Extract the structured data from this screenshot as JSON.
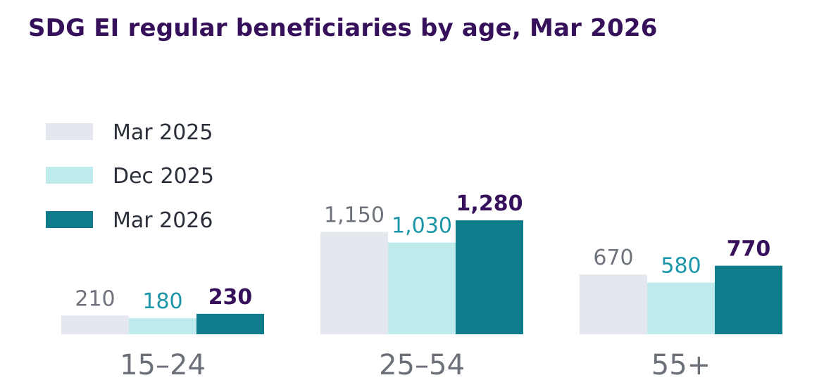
{
  "chart_data": {
    "type": "bar",
    "title": "SDG EI regular beneficiaries by age, Mar 2026",
    "categories": [
      "15–24",
      "25–54",
      "55+"
    ],
    "series": [
      {
        "name": "Mar 2025",
        "values": [
          210,
          1150,
          670
        ],
        "labels": [
          "210",
          "1,150",
          "670"
        ],
        "color": "#e4e7ee",
        "label_color": "#6e737b",
        "bold": false
      },
      {
        "name": "Dec 2025",
        "values": [
          180,
          1030,
          580
        ],
        "labels": [
          "180",
          "1,030",
          "580"
        ],
        "color": "#bfeaec",
        "label_color": "#1a96a8",
        "bold": false
      },
      {
        "name": "Mar 2026",
        "values": [
          230,
          1280,
          770
        ],
        "labels": [
          "230",
          "1,280",
          "770"
        ],
        "color": "#0f7c8c",
        "label_color": "#36105a",
        "bold": true
      }
    ],
    "legend_position": "top-left",
    "ylim": [
      0,
      1400
    ],
    "grid": false
  }
}
